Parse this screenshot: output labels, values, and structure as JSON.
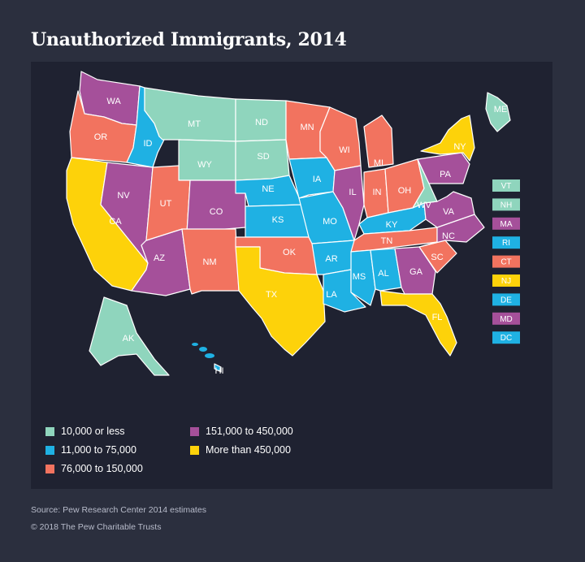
{
  "title": "Unauthorized Immigrants, 2014",
  "source": "Source: Pew Research Center 2014 estimates",
  "copyright": "© 2018 The Pew Charitable Trusts",
  "colors": {
    "c1": "#8fd5bd",
    "c2": "#1fb1e3",
    "c3": "#f2735f",
    "c4": "#a5509a",
    "c5": "#fdd20a"
  },
  "legend": [
    {
      "label": "10,000 or less",
      "category": "c1"
    },
    {
      "label": "11,000 to 75,000",
      "category": "c2"
    },
    {
      "label": "76,000 to 150,000",
      "category": "c3"
    },
    {
      "label": "151,000 to 450,000",
      "category": "c4"
    },
    {
      "label": "More than 450,000",
      "category": "c5"
    }
  ],
  "states": {
    "WA": "c4",
    "OR": "c3",
    "CA": "c5",
    "ID": "c2",
    "NV": "c4",
    "AZ": "c4",
    "MT": "c1",
    "WY": "c1",
    "UT": "c3",
    "CO": "c4",
    "NM": "c3",
    "ND": "c1",
    "SD": "c1",
    "NE": "c2",
    "KS": "c2",
    "OK": "c3",
    "TX": "c5",
    "MN": "c3",
    "IA": "c2",
    "MO": "c2",
    "AR": "c2",
    "LA": "c2",
    "WI": "c3",
    "IL": "c4",
    "MI": "c3",
    "IN": "c3",
    "OH": "c3",
    "KY": "c2",
    "TN": "c3",
    "MS": "c2",
    "AL": "c2",
    "GA": "c4",
    "FL": "c5",
    "SC": "c3",
    "NC": "c4",
    "VA": "c4",
    "WV": "c1",
    "PA": "c4",
    "NY": "c5",
    "ME": "c1",
    "AK": "c1",
    "HI": "c2"
  },
  "small_states": [
    {
      "abbr": "VT",
      "category": "c1"
    },
    {
      "abbr": "NH",
      "category": "c1"
    },
    {
      "abbr": "MA",
      "category": "c4"
    },
    {
      "abbr": "RI",
      "category": "c2"
    },
    {
      "abbr": "CT",
      "category": "c3"
    },
    {
      "abbr": "NJ",
      "category": "c5"
    },
    {
      "abbr": "DE",
      "category": "c2"
    },
    {
      "abbr": "MD",
      "category": "c4"
    },
    {
      "abbr": "DC",
      "category": "c2"
    }
  ]
}
